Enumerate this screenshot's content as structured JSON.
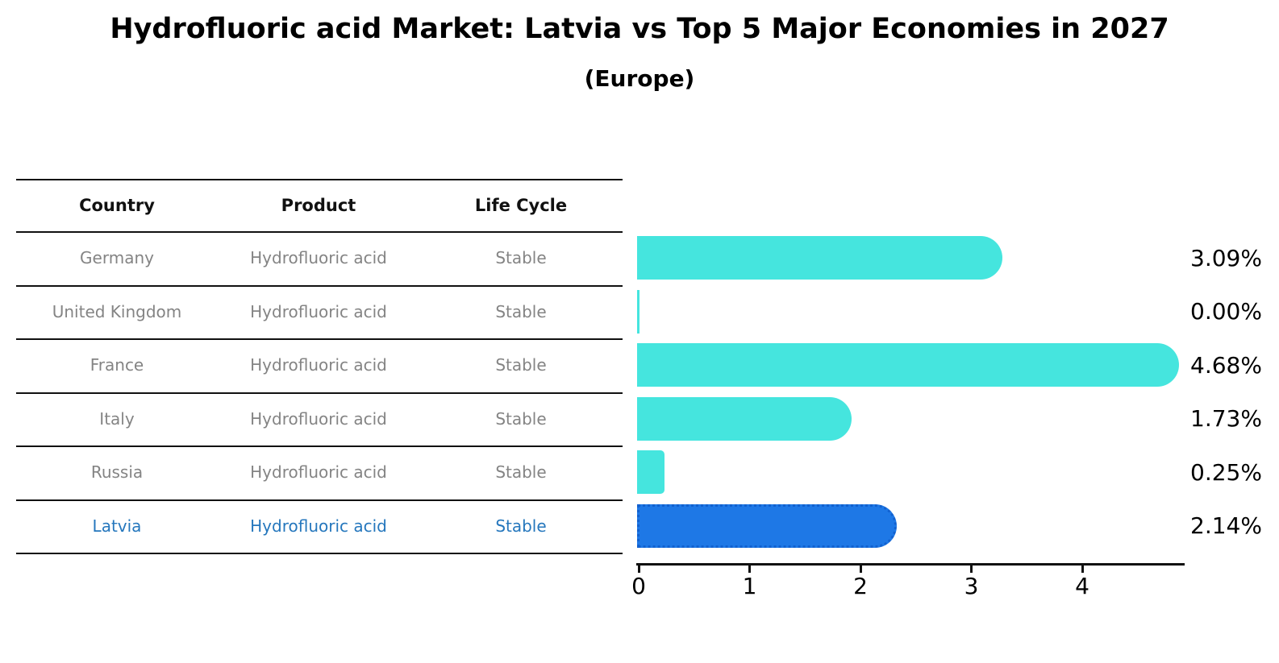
{
  "title": "Hydrofluoric acid Market: Latvia vs Top 5 Major Economies in 2027",
  "subtitle": "(Europe)",
  "table": {
    "columns": [
      "Country",
      "Product",
      "Life Cycle"
    ],
    "rows": [
      {
        "country": "Germany",
        "product": "Hydrofluoric acid",
        "life_cycle": "Stable",
        "highlight": false
      },
      {
        "country": "United Kingdom",
        "product": "Hydrofluoric acid",
        "life_cycle": "Stable",
        "highlight": false
      },
      {
        "country": "France",
        "product": "Hydrofluoric acid",
        "life_cycle": "Stable",
        "highlight": false
      },
      {
        "country": "Italy",
        "product": "Hydrofluoric acid",
        "life_cycle": "Stable",
        "highlight": false
      },
      {
        "country": "Russia",
        "product": "Hydrofluoric acid",
        "life_cycle": "Stable",
        "highlight": false
      },
      {
        "country": "Latvia",
        "product": "Hydrofluoric acid",
        "life_cycle": "Stable",
        "highlight": true
      }
    ]
  },
  "chart_data": {
    "type": "bar",
    "orientation": "horizontal",
    "title": "Hydrofluoric acid Market: Latvia vs Top 5 Major Economies in 2027",
    "subtitle": "(Europe)",
    "categories": [
      "Germany",
      "United Kingdom",
      "France",
      "Italy",
      "Russia",
      "Latvia"
    ],
    "values": [
      3.09,
      0.0,
      4.68,
      1.73,
      0.25,
      2.14
    ],
    "value_labels": [
      "3.09%",
      "0.00%",
      "4.68%",
      "1.73%",
      "0.25%",
      "2.14%"
    ],
    "highlight_index": 5,
    "xticks": [
      0,
      1,
      2,
      3,
      4
    ],
    "xlim": [
      0,
      4.92
    ],
    "grid": false,
    "legend": false,
    "bar_color": "#45e5de",
    "highlight_bar_color": "#1e78e6",
    "highlight_text_color": "#2577bd",
    "row_text_color": "#848484",
    "axis_color": "#111111"
  }
}
